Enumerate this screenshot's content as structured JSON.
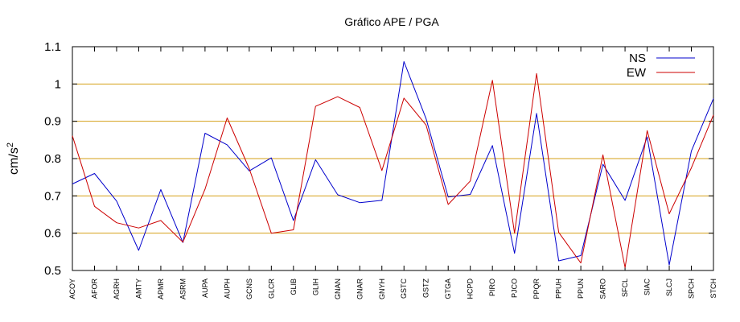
{
  "chart_data": {
    "type": "line",
    "title": "Gráfico  APE / PGA",
    "ylabel": "cm/s",
    "ylabel_superscript": "2",
    "xlabel": "",
    "ylim": [
      0.5,
      1.1
    ],
    "yticks": [
      "0.5",
      "0.6",
      "0.7",
      "0.8",
      "0.9",
      "1",
      "1.1"
    ],
    "ytick_values": [
      0.5,
      0.6,
      0.7,
      0.8,
      0.9,
      1.0,
      1.1
    ],
    "grid": "horizontal",
    "legend_position": "top-right",
    "categories": [
      "ACOY",
      "AFOR",
      "AGRH",
      "AMTY",
      "APMR",
      "ASRM",
      "AUPA",
      "AUPH",
      "GCNS",
      "GLCR",
      "GLIB",
      "GLIH",
      "GNAN",
      "GNAR",
      "GNYH",
      "GSTC",
      "GSTZ",
      "GTGA",
      "HCPD",
      "PIRO",
      "PJCO",
      "PPQR",
      "PPUH",
      "PPUN",
      "SARO",
      "SFCL",
      "SIAC",
      "SLCJ",
      "SPCH",
      "STCH"
    ],
    "series": [
      {
        "name": "NS",
        "color": "#0000cc",
        "values": [
          0.732,
          0.76,
          0.686,
          0.554,
          0.717,
          0.575,
          0.868,
          0.837,
          0.767,
          0.802,
          0.634,
          0.797,
          0.703,
          0.682,
          0.688,
          1.06,
          0.907,
          0.697,
          0.704,
          0.835,
          0.546,
          0.921,
          0.526,
          0.54,
          0.785,
          0.688,
          0.858,
          0.515,
          0.82,
          0.961
        ]
      },
      {
        "name": "EW",
        "color": "#cc0000",
        "values": [
          0.861,
          0.672,
          0.628,
          0.614,
          0.634,
          0.576,
          0.718,
          0.909,
          0.773,
          0.6,
          0.609,
          0.94,
          0.966,
          0.937,
          0.768,
          0.962,
          0.89,
          0.677,
          0.74,
          1.01,
          0.6,
          1.028,
          0.602,
          0.52,
          0.81,
          0.508,
          0.875,
          0.652,
          0.775,
          0.917
        ]
      }
    ]
  }
}
